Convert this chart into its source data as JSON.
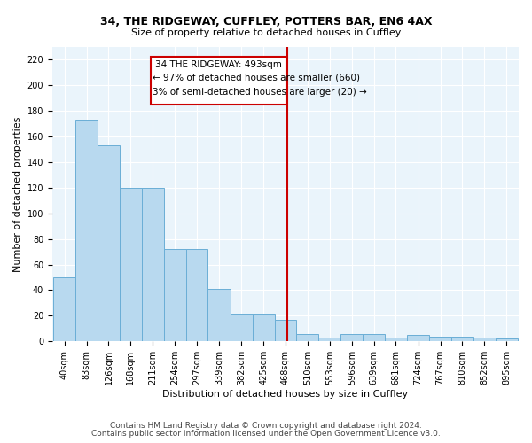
{
  "title1": "34, THE RIDGEWAY, CUFFLEY, POTTERS BAR, EN6 4AX",
  "title2": "Size of property relative to detached houses in Cuffley",
  "xlabel": "Distribution of detached houses by size in Cuffley",
  "ylabel": "Number of detached properties",
  "bar_edges": [
    40,
    83,
    126,
    168,
    211,
    254,
    297,
    339,
    382,
    425,
    468,
    510,
    553,
    596,
    639,
    681,
    724,
    767,
    810,
    852,
    895,
    938
  ],
  "bar_heights": [
    50,
    172,
    153,
    120,
    120,
    72,
    72,
    41,
    22,
    22,
    17,
    6,
    3,
    6,
    6,
    3,
    5,
    4,
    4,
    3,
    2
  ],
  "tick_labels": [
    "40sqm",
    "83sqm",
    "126sqm",
    "168sqm",
    "211sqm",
    "254sqm",
    "297sqm",
    "339sqm",
    "382sqm",
    "425sqm",
    "468sqm",
    "510sqm",
    "553sqm",
    "596sqm",
    "639sqm",
    "681sqm",
    "724sqm",
    "767sqm",
    "810sqm",
    "852sqm",
    "895sqm"
  ],
  "bar_color": "#B8D9EF",
  "bar_edge_color": "#6AAED6",
  "vline_x": 493,
  "vline_color": "#CC0000",
  "annotation_title": "34 THE RIDGEWAY: 493sqm",
  "annotation_line1": "← 97% of detached houses are smaller (660)",
  "annotation_line2": "3% of semi-detached houses are larger (20) →",
  "ylim_max": 230,
  "yticks": [
    0,
    20,
    40,
    60,
    80,
    100,
    120,
    140,
    160,
    180,
    200,
    220
  ],
  "background_color": "#EAF4FB",
  "grid_color": "#FFFFFF",
  "title1_fontsize": 9,
  "title2_fontsize": 8,
  "ylabel_fontsize": 8,
  "xlabel_fontsize": 8,
  "tick_fontsize": 7,
  "footer1": "Contains HM Land Registry data © Crown copyright and database right 2024.",
  "footer2": "Contains public sector information licensed under the Open Government Licence v3.0.",
  "footer_fontsize": 6.5
}
